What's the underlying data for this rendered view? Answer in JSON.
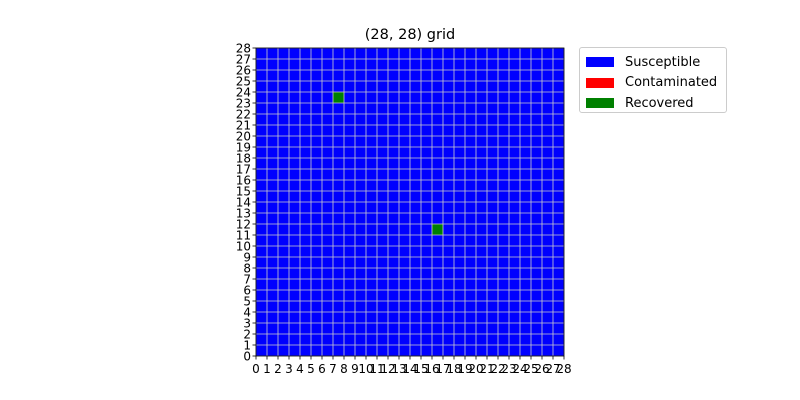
{
  "chart_data": {
    "type": "heatmap",
    "title": "(28, 28) grid",
    "xlabel": "",
    "ylabel": "",
    "xlim": [
      0,
      28
    ],
    "ylim": [
      0,
      28
    ],
    "x_ticks": [
      "0",
      "1",
      "2",
      "3",
      "4",
      "5",
      "6",
      "7",
      "8",
      "9",
      "10",
      "11",
      "12",
      "13",
      "14",
      "15",
      "16",
      "17",
      "18",
      "19",
      "20",
      "21",
      "22",
      "23",
      "24",
      "25",
      "26",
      "27",
      "28"
    ],
    "y_ticks": [
      "0",
      "1",
      "2",
      "3",
      "4",
      "5",
      "6",
      "7",
      "8",
      "9",
      "10",
      "11",
      "12",
      "13",
      "14",
      "15",
      "16",
      "17",
      "18",
      "19",
      "20",
      "21",
      "22",
      "23",
      "24",
      "25",
      "26",
      "27",
      "28"
    ],
    "grid": true,
    "grid_color": "#cccccc",
    "default_state": "Susceptible",
    "states": [
      {
        "name": "Susceptible",
        "color": "#0000ff"
      },
      {
        "name": "Contaminated",
        "color": "#ff0000"
      },
      {
        "name": "Recovered",
        "color": "#008000"
      }
    ],
    "cells": [
      {
        "x": 7,
        "y": 23,
        "state": "Recovered"
      },
      {
        "x": 16,
        "y": 11,
        "state": "Recovered"
      }
    ],
    "legend_position": "outside-top-right"
  }
}
